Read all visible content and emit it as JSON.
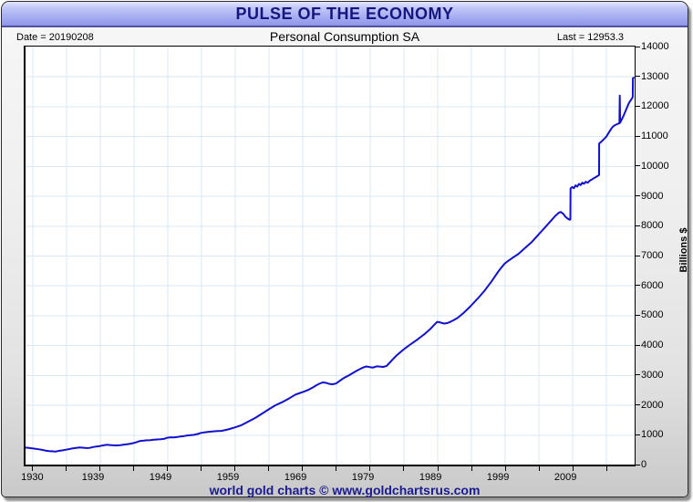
{
  "window": {
    "title": "PULSE OF THE ECONOMY"
  },
  "header": {
    "date_label": "Date = 20190208",
    "subtitle": "Personal Consumption SA",
    "last_label": "Last = 12953.3"
  },
  "footer": {
    "text": "world gold charts © www.goldchartsrus.com"
  },
  "colors": {
    "line": "#1111cd",
    "grid": "#d9e8f6",
    "plot_border": "#000000",
    "title_text": "#16167e",
    "footer_text": "#1a1a8f",
    "titlebar_top": "#e3e6fd",
    "titlebar_bottom": "#8e95e9"
  },
  "chart_data": {
    "type": "line",
    "title": "Personal Consumption SA",
    "xlabel": "",
    "ylabel": "Billions $",
    "xlim": [
      1929,
      2019.25
    ],
    "ylim": [
      0,
      14000
    ],
    "grid": true,
    "legend": "none",
    "last_value": 12953.3,
    "y_ticks": [
      {
        "v": 0,
        "label": "0"
      },
      {
        "v": 1000,
        "label": "1000"
      },
      {
        "v": 2000,
        "label": "2000"
      },
      {
        "v": 3000,
        "label": "3000"
      },
      {
        "v": 4000,
        "label": "4000"
      },
      {
        "v": 5000,
        "label": "5000"
      },
      {
        "v": 6000,
        "label": "6000"
      },
      {
        "v": 7000,
        "label": "7000"
      },
      {
        "v": 8000,
        "label": "8000"
      },
      {
        "v": 9000,
        "label": "9000"
      },
      {
        "v": 10000,
        "label": "10000"
      },
      {
        "v": 11000,
        "label": "11000"
      },
      {
        "v": 12000,
        "label": "12000"
      },
      {
        "v": 13000,
        "label": "13000"
      },
      {
        "v": 14000,
        "label": "14000"
      }
    ],
    "x_ticks": [
      1930,
      1935,
      1940,
      1945,
      1950,
      1955,
      1960,
      1965,
      1970,
      1975,
      1980,
      1985,
      1990,
      1995,
      2000,
      2005,
      2010,
      2015
    ],
    "x_labels": [
      {
        "year": 1930,
        "label": "1930"
      },
      {
        "year": 1939,
        "label": "1939"
      },
      {
        "year": 1949,
        "label": "1949"
      },
      {
        "year": 1959,
        "label": "1959"
      },
      {
        "year": 1969,
        "label": "1969"
      },
      {
        "year": 1979,
        "label": "1979"
      },
      {
        "year": 1989,
        "label": "1989"
      },
      {
        "year": 1999,
        "label": "1999"
      },
      {
        "year": 2009,
        "label": "2009"
      }
    ],
    "series": [
      {
        "name": "Personal Consumption SA",
        "color": "#1111cd",
        "points": [
          [
            1929,
            570
          ],
          [
            1929.5,
            560
          ],
          [
            1930,
            545
          ],
          [
            1930.5,
            528
          ],
          [
            1931,
            512
          ],
          [
            1931.5,
            492
          ],
          [
            1932,
            465
          ],
          [
            1932.5,
            450
          ],
          [
            1933,
            442
          ],
          [
            1933.5,
            438
          ],
          [
            1934,
            462
          ],
          [
            1934.5,
            478
          ],
          [
            1935,
            498
          ],
          [
            1935.5,
            520
          ],
          [
            1936,
            545
          ],
          [
            1936.5,
            560
          ],
          [
            1937,
            572
          ],
          [
            1937.5,
            565
          ],
          [
            1938,
            552
          ],
          [
            1938.5,
            558
          ],
          [
            1939,
            588
          ],
          [
            1939.5,
            605
          ],
          [
            1940,
            622
          ],
          [
            1940.5,
            642
          ],
          [
            1941,
            662
          ],
          [
            1941.5,
            655
          ],
          [
            1942,
            645
          ],
          [
            1942.5,
            642
          ],
          [
            1943,
            652
          ],
          [
            1943.5,
            665
          ],
          [
            1944,
            678
          ],
          [
            1944.5,
            695
          ],
          [
            1945,
            722
          ],
          [
            1945.5,
            755
          ],
          [
            1946,
            792
          ],
          [
            1946.5,
            802
          ],
          [
            1947,
            812
          ],
          [
            1947.5,
            820
          ],
          [
            1948,
            832
          ],
          [
            1948.5,
            842
          ],
          [
            1949,
            848
          ],
          [
            1949.5,
            860
          ],
          [
            1950,
            900
          ],
          [
            1950.5,
            915
          ],
          [
            1951,
            910
          ],
          [
            1951.5,
            922
          ],
          [
            1952,
            940
          ],
          [
            1952.5,
            958
          ],
          [
            1953,
            975
          ],
          [
            1953.5,
            988
          ],
          [
            1954,
            998
          ],
          [
            1954.5,
            1025
          ],
          [
            1955,
            1062
          ],
          [
            1955.5,
            1080
          ],
          [
            1956,
            1095
          ],
          [
            1956.5,
            1105
          ],
          [
            1957,
            1115
          ],
          [
            1957.5,
            1122
          ],
          [
            1958,
            1128
          ],
          [
            1958.5,
            1148
          ],
          [
            1959,
            1178
          ],
          [
            1960,
            1245
          ],
          [
            1961,
            1320
          ],
          [
            1962,
            1440
          ],
          [
            1963,
            1560
          ],
          [
            1964,
            1700
          ],
          [
            1965,
            1845
          ],
          [
            1966,
            1985
          ],
          [
            1967,
            2088
          ],
          [
            1968,
            2210
          ],
          [
            1969,
            2345
          ],
          [
            1969.5,
            2385
          ],
          [
            1970,
            2425
          ],
          [
            1970.5,
            2468
          ],
          [
            1971,
            2512
          ],
          [
            1971.5,
            2575
          ],
          [
            1972,
            2645
          ],
          [
            1972.5,
            2705
          ],
          [
            1973,
            2752
          ],
          [
            1973.5,
            2740
          ],
          [
            1974,
            2702
          ],
          [
            1974.5,
            2690
          ],
          [
            1975,
            2715
          ],
          [
            1975.5,
            2795
          ],
          [
            1976,
            2875
          ],
          [
            1976.5,
            2940
          ],
          [
            1977,
            3000
          ],
          [
            1977.5,
            3068
          ],
          [
            1978,
            3132
          ],
          [
            1978.5,
            3195
          ],
          [
            1979,
            3250
          ],
          [
            1979.5,
            3285
          ],
          [
            1980,
            3265
          ],
          [
            1980.5,
            3250
          ],
          [
            1981,
            3290
          ],
          [
            1981.5,
            3282
          ],
          [
            1982,
            3272
          ],
          [
            1982.5,
            3305
          ],
          [
            1983,
            3425
          ],
          [
            1983.5,
            3545
          ],
          [
            1984,
            3660
          ],
          [
            1984.5,
            3758
          ],
          [
            1985,
            3850
          ],
          [
            1985.5,
            3938
          ],
          [
            1986,
            4020
          ],
          [
            1986.5,
            4100
          ],
          [
            1987,
            4178
          ],
          [
            1987.5,
            4265
          ],
          [
            1988,
            4350
          ],
          [
            1988.5,
            4448
          ],
          [
            1989,
            4545
          ],
          [
            1989.5,
            4668
          ],
          [
            1990,
            4780
          ],
          [
            1990.5,
            4755
          ],
          [
            1991,
            4722
          ],
          [
            1991.5,
            4738
          ],
          [
            1992,
            4788
          ],
          [
            1992.5,
            4845
          ],
          [
            1993,
            4910
          ],
          [
            1993.5,
            5000
          ],
          [
            1994,
            5100
          ],
          [
            1994.5,
            5210
          ],
          [
            1995,
            5320
          ],
          [
            1995.5,
            5440
          ],
          [
            1996,
            5560
          ],
          [
            1996.5,
            5690
          ],
          [
            1997,
            5820
          ],
          [
            1997.5,
            5970
          ],
          [
            1998,
            6120
          ],
          [
            1998.5,
            6285
          ],
          [
            1999,
            6450
          ],
          [
            1999.5,
            6595
          ],
          [
            2000,
            6730
          ],
          [
            2000.5,
            6820
          ],
          [
            2001,
            6900
          ],
          [
            2001.5,
            6975
          ],
          [
            2002,
            7050
          ],
          [
            2002.5,
            7150
          ],
          [
            2003,
            7250
          ],
          [
            2003.5,
            7350
          ],
          [
            2004,
            7452
          ],
          [
            2004.5,
            7575
          ],
          [
            2005,
            7700
          ],
          [
            2005.5,
            7825
          ],
          [
            2006,
            7950
          ],
          [
            2006.5,
            8075
          ],
          [
            2007,
            8200
          ],
          [
            2007.5,
            8330
          ],
          [
            2008,
            8430
          ],
          [
            2008.3,
            8460
          ],
          [
            2008.7,
            8395
          ],
          [
            2009,
            8300
          ],
          [
            2009.3,
            8240
          ],
          [
            2009.6,
            8198
          ],
          [
            2009.72,
            8210
          ],
          [
            2009.75,
            9240
          ],
          [
            2010,
            9300
          ],
          [
            2010.25,
            9255
          ],
          [
            2010.5,
            9350
          ],
          [
            2010.75,
            9310
          ],
          [
            2011,
            9400
          ],
          [
            2011.25,
            9360
          ],
          [
            2011.5,
            9440
          ],
          [
            2011.75,
            9405
          ],
          [
            2012,
            9470
          ],
          [
            2012.3,
            9440
          ],
          [
            2012.6,
            9510
          ],
          [
            2012.9,
            9545
          ],
          [
            2013.2,
            9590
          ],
          [
            2013.5,
            9630
          ],
          [
            2013.8,
            9672
          ],
          [
            2013.98,
            9700
          ],
          [
            2014.0,
            10750
          ],
          [
            2014.35,
            10820
          ],
          [
            2014.7,
            10900
          ],
          [
            2015.05,
            10980
          ],
          [
            2015.35,
            11090
          ],
          [
            2015.65,
            11200
          ],
          [
            2015.95,
            11300
          ],
          [
            2016.25,
            11355
          ],
          [
            2016.55,
            11390
          ],
          [
            2016.85,
            11420
          ],
          [
            2017.0,
            11430
          ],
          [
            2017.05,
            12360
          ],
          [
            2017.1,
            11450
          ],
          [
            2017.35,
            11560
          ],
          [
            2017.6,
            11680
          ],
          [
            2017.85,
            11810
          ],
          [
            2018.1,
            11950
          ],
          [
            2018.35,
            12080
          ],
          [
            2018.6,
            12180
          ],
          [
            2018.85,
            12260
          ],
          [
            2018.97,
            12310
          ],
          [
            2019.0,
            12940
          ],
          [
            2019.1,
            12953.3
          ]
        ]
      }
    ]
  }
}
